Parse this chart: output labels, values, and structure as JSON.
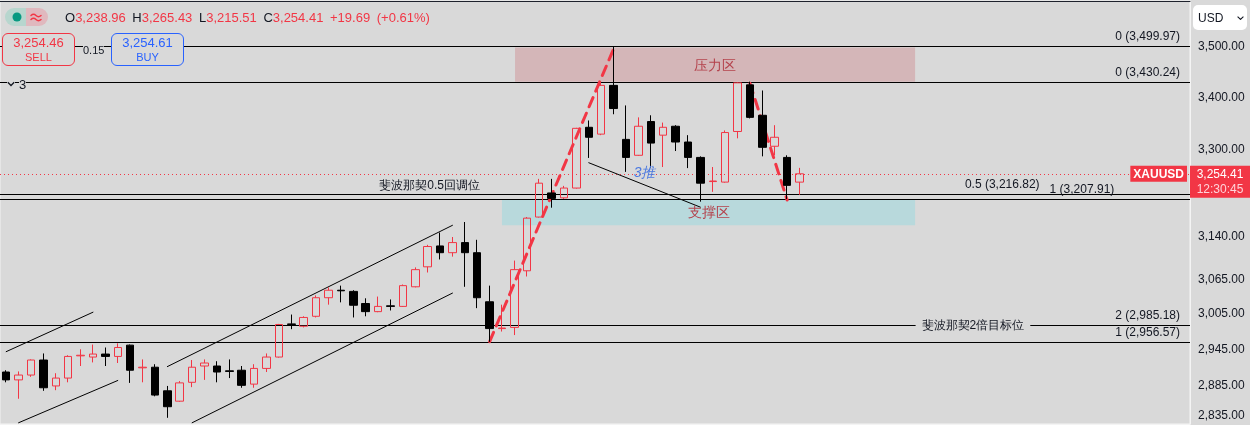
{
  "chart_data": {
    "type": "candlestick",
    "title": "O3,238.96 H3,265.43 L3,215.51 C3,254.41 +19.69 (+0.61%)",
    "categories": [
      null,
      null,
      null,
      null,
      null,
      null,
      null,
      null,
      null,
      null,
      null,
      null,
      null,
      null,
      null,
      null,
      null,
      null,
      null,
      null,
      null,
      null,
      null,
      null,
      null,
      null,
      null,
      null,
      null,
      null,
      null,
      null,
      null,
      null,
      null,
      null,
      null,
      null,
      null,
      null,
      null,
      null,
      null,
      null,
      null,
      null,
      null,
      null,
      null,
      null,
      null,
      null,
      null,
      null,
      null,
      null,
      null,
      null,
      null,
      null,
      null,
      null,
      null,
      null,
      null,
      null,
      null,
      null,
      null,
      null,
      null,
      null,
      null,
      null,
      null,
      null,
      null,
      null,
      null,
      null,
      null,
      null,
      null,
      null,
      null,
      null,
      null,
      null,
      null,
      null,
      null,
      null,
      null,
      null,
      null,
      null
    ],
    "ohlc": [
      [
        2906,
        2909,
        2889,
        2893
      ],
      [
        2893,
        2907,
        2862,
        2901
      ],
      [
        2901,
        2927,
        2898,
        2926
      ],
      [
        2926,
        2937,
        2875,
        2880
      ],
      [
        2883,
        2904,
        2876,
        2896
      ],
      [
        2896,
        2934,
        2889,
        2932
      ],
      [
        2933,
        2944,
        2916,
        2934
      ],
      [
        2931,
        2952,
        2922,
        2936
      ],
      [
        2936,
        2947,
        2916,
        2932
      ],
      [
        2932,
        2954,
        2921,
        2947
      ],
      [
        2951,
        2952,
        2888,
        2909
      ],
      [
        2913,
        2927,
        2889,
        2914
      ],
      [
        2914,
        2919,
        2866,
        2868
      ],
      [
        2875,
        2883,
        2831,
        2849
      ],
      [
        2858,
        2891,
        2857,
        2888
      ],
      [
        2889,
        2926,
        2881,
        2914
      ],
      [
        2916,
        2927,
        2893,
        2921
      ],
      [
        2916,
        2924,
        2889,
        2906
      ],
      [
        2908,
        2927,
        2896,
        2907
      ],
      [
        2909,
        2916,
        2880,
        2884
      ],
      [
        2886,
        2919,
        2880,
        2912
      ],
      [
        2912,
        2937,
        2906,
        2931
      ],
      [
        2931,
        2987,
        2930,
        2986
      ],
      [
        2987,
        3003,
        2978,
        2986
      ],
      [
        2983,
        3000,
        2981,
        2998
      ],
      [
        3000,
        3036,
        2998,
        3032
      ],
      [
        3032,
        3050,
        3020,
        3045
      ],
      [
        3045,
        3053,
        3024,
        3044
      ],
      [
        3043,
        3045,
        2998,
        3019
      ],
      [
        3022,
        3031,
        3000,
        3008
      ],
      [
        3008,
        3034,
        3007,
        3017
      ],
      [
        3018,
        3029,
        3010,
        3017
      ],
      [
        3017,
        3055,
        3016,
        3053
      ],
      [
        3051,
        3085,
        3050,
        3081
      ],
      [
        3086,
        3125,
        3076,
        3122
      ],
      [
        3123,
        3147,
        3099,
        3111
      ],
      [
        3111,
        3139,
        3104,
        3129
      ],
      [
        3129,
        3166,
        3051,
        3111
      ],
      [
        3111,
        3134,
        3014,
        3032
      ],
      [
        3025,
        3053,
        2956.57,
        2979
      ],
      [
        2979,
        3020,
        2974,
        2980
      ],
      [
        2981,
        3097,
        2968,
        3081
      ],
      [
        3079,
        3175,
        3069,
        3173
      ],
      [
        3175,
        3245,
        3174,
        3237
      ],
      [
        3219,
        3245,
        3192,
        3209
      ],
      [
        3210,
        3232,
        3208,
        3228
      ],
      [
        3228,
        3341,
        3227,
        3340
      ],
      [
        3342,
        3355,
        3284,
        3323
      ],
      [
        3329,
        3429,
        3327,
        3423
      ],
      [
        3423,
        3499.97,
        3367,
        3378
      ],
      [
        3319,
        3384,
        3258,
        3285
      ],
      [
        3289,
        3361,
        3288,
        3344
      ],
      [
        3353,
        3365,
        3265,
        3312
      ],
      [
        3327,
        3351,
        3267,
        3342
      ],
      [
        3344,
        3346,
        3297,
        3314
      ],
      [
        3314,
        3327,
        3265,
        3285
      ],
      [
        3285,
        3287,
        3203,
        3237
      ],
      [
        3240,
        3267,
        3221,
        3241
      ],
      [
        3239,
        3336,
        3238,
        3332
      ],
      [
        3334,
        3429,
        3321,
        3428
      ],
      [
        3424,
        3430.24,
        3359,
        3361
      ],
      [
        3365,
        3413,
        3287,
        3304
      ],
      [
        3306,
        3346,
        3289,
        3323
      ],
      [
        3285,
        3289,
        3207.91,
        3233
      ],
      [
        3238.96,
        3265.43,
        3215.51,
        3254.41
      ],
      null,
      null,
      null,
      null,
      null,
      null,
      null,
      null,
      null,
      null,
      null,
      null,
      null,
      null,
      null,
      null,
      null,
      null,
      null,
      null,
      null,
      null,
      null,
      null,
      null,
      null,
      null,
      null,
      null,
      null,
      null
    ],
    "colors": [
      "#000000",
      "#f23645",
      "#f23645",
      "#000000",
      "#f23645",
      "#f23645",
      "#f23645",
      "#f23645",
      "#000000",
      "#f23645",
      "#000000",
      "#f23645",
      "#000000",
      "#000000",
      "#f23645",
      "#f23645",
      "#f23645",
      "#000000",
      "#000000",
      "#000000",
      "#f23645",
      "#f23645",
      "#f23645",
      "#000000",
      "#f23645",
      "#f23645",
      "#f23645",
      "#000000",
      "#000000",
      "#000000",
      "#f23645",
      "#000000",
      "#f23645",
      "#f23645",
      "#f23645",
      "#000000",
      "#f23645",
      "#000000",
      "#000000",
      "#000000",
      "#f23645",
      "#f23645",
      "#f23645",
      "#f23645",
      "#000000",
      "#f23645",
      "#f23645",
      "#000000",
      "#f23645",
      "#000000",
      "#000000",
      "#f23645",
      "#000000",
      "#f23645",
      "#000000",
      "#000000",
      "#000000",
      "#f23645",
      "#f23645",
      "#f23645",
      "#000000",
      "#000000",
      "#f23645",
      "#000000",
      "#f23645",
      null,
      null,
      null,
      null,
      null,
      null,
      null,
      null,
      null,
      null,
      null,
      null,
      null,
      null,
      null,
      null,
      null,
      null,
      null,
      null,
      null,
      null,
      null,
      null,
      null,
      null,
      null,
      null,
      null,
      null,
      null
    ],
    "series": [
      {
        "type": "line",
        "color": "#000000",
        "values": [
          2940,
          null,
          null,
          null,
          null,
          null,
          null,
          3007,
          null,
          null,
          null,
          null,
          null,
          null,
          null,
          null,
          null,
          null,
          null,
          null,
          null,
          null,
          null,
          null,
          null,
          null,
          null,
          null,
          null,
          null,
          null,
          null,
          null,
          null,
          null,
          null,
          null,
          null,
          null,
          null,
          null,
          null,
          null,
          null,
          null,
          null,
          null,
          null,
          null,
          null,
          null,
          null,
          null,
          null,
          null,
          null,
          null,
          null,
          null,
          null,
          null,
          null,
          null,
          null,
          null,
          null,
          null,
          null,
          null,
          null,
          null,
          null,
          null,
          null,
          null,
          null,
          null,
          null,
          null,
          null,
          null,
          null,
          null,
          null,
          null,
          null,
          null,
          null,
          null,
          null,
          null,
          null,
          null,
          null,
          null,
          null
        ]
      },
      {
        "type": "line",
        "color": "#000000",
        "values": [
          null,
          2823,
          null,
          null,
          null,
          null,
          null,
          null,
          null,
          2892,
          null,
          null,
          null,
          null,
          null,
          null,
          null,
          null,
          null,
          null,
          null,
          null,
          null,
          null,
          null,
          null,
          null,
          null,
          null,
          null,
          null,
          null,
          null,
          null,
          null,
          null,
          null,
          null,
          null,
          null,
          null,
          null,
          null,
          null,
          null,
          null,
          null,
          null,
          null,
          null,
          null,
          null,
          null,
          null,
          null,
          null,
          null,
          null,
          null,
          null,
          null,
          null,
          null,
          null,
          null,
          null,
          null,
          null,
          null,
          null,
          null,
          null,
          null,
          null,
          null,
          null,
          null,
          null,
          null,
          null,
          null,
          null,
          null,
          null,
          null,
          null,
          null,
          null,
          null,
          null,
          null,
          null,
          null,
          null,
          null,
          null
        ]
      },
      {
        "type": "line",
        "color": "#000000",
        "values": [
          null,
          null,
          null,
          null,
          null,
          null,
          null,
          null,
          null,
          null,
          null,
          null,
          null,
          2915,
          null,
          null,
          null,
          null,
          null,
          null,
          null,
          null,
          null,
          null,
          null,
          null,
          null,
          null,
          null,
          null,
          null,
          null,
          null,
          null,
          null,
          null,
          3160,
          null,
          null,
          null,
          null,
          null,
          null,
          null,
          null,
          null,
          null,
          null,
          null,
          null,
          null,
          null,
          null,
          null,
          null,
          null,
          null,
          null,
          null,
          null,
          null,
          null,
          null,
          null,
          null,
          null,
          null,
          null,
          null,
          null,
          null,
          null,
          null,
          null,
          null,
          null,
          null,
          null,
          null,
          null,
          null,
          null,
          null,
          null,
          null,
          null,
          null,
          null,
          null,
          null,
          null,
          null,
          null,
          null,
          null,
          null
        ]
      },
      {
        "type": "line",
        "color": "#000000",
        "values": [
          null,
          null,
          null,
          null,
          null,
          null,
          null,
          null,
          null,
          null,
          null,
          null,
          null,
          null,
          null,
          2823,
          null,
          null,
          null,
          null,
          null,
          null,
          null,
          null,
          null,
          null,
          null,
          null,
          null,
          null,
          null,
          null,
          null,
          null,
          null,
          null,
          3040,
          null,
          null,
          null,
          null,
          null,
          null,
          null,
          null,
          null,
          null,
          null,
          null,
          null,
          null,
          null,
          null,
          null,
          null,
          null,
          null,
          null,
          null,
          null,
          null,
          null,
          null,
          null,
          null,
          null,
          null,
          null,
          null,
          null,
          null,
          null,
          null,
          null,
          null,
          null,
          null,
          null,
          null,
          null,
          null,
          null,
          null,
          null,
          null,
          null,
          null,
          null,
          null,
          null,
          null,
          null,
          null,
          null,
          null,
          null
        ]
      },
      {
        "type": "line",
        "name": "3推",
        "color": "#000000",
        "values": [
          null,
          null,
          null,
          null,
          null,
          null,
          null,
          null,
          null,
          null,
          null,
          null,
          null,
          null,
          null,
          null,
          null,
          null,
          null,
          null,
          null,
          null,
          null,
          null,
          null,
          null,
          null,
          null,
          null,
          null,
          null,
          null,
          null,
          null,
          null,
          null,
          null,
          null,
          null,
          null,
          null,
          null,
          null,
          null,
          null,
          null,
          null,
          3275,
          null,
          null,
          null,
          null,
          null,
          null,
          null,
          null,
          3193,
          null,
          null,
          null,
          null,
          null,
          null,
          null,
          null,
          null,
          null,
          null,
          null,
          null,
          null,
          null,
          null,
          null,
          null,
          null,
          null,
          null,
          null,
          null,
          null,
          null,
          null,
          null,
          null,
          null,
          null,
          null,
          null,
          null,
          null,
          null,
          null,
          null,
          null,
          null
        ]
      },
      {
        "type": "line",
        "color": "#f23645",
        "line_style": "dashed",
        "values": [
          null,
          null,
          null,
          null,
          null,
          null,
          null,
          null,
          null,
          null,
          null,
          null,
          null,
          null,
          null,
          null,
          null,
          null,
          null,
          null,
          null,
          null,
          null,
          null,
          null,
          null,
          null,
          null,
          null,
          null,
          null,
          null,
          null,
          null,
          null,
          null,
          null,
          null,
          null,
          2957,
          null,
          null,
          null,
          null,
          null,
          null,
          null,
          null,
          null,
          3495,
          null,
          null,
          null,
          null,
          null,
          null,
          null,
          null,
          null,
          null,
          null,
          null,
          null,
          null,
          null,
          null,
          null,
          null,
          null,
          null,
          null,
          null,
          null,
          null,
          null,
          null,
          null,
          null,
          null,
          null,
          null,
          null,
          null,
          null,
          null,
          null,
          null,
          null,
          null,
          null,
          null,
          null,
          null,
          null,
          null,
          null
        ]
      },
      {
        "type": "line",
        "color": "#f23645",
        "line_style": "dashed",
        "values": [
          null,
          null,
          null,
          null,
          null,
          null,
          null,
          null,
          null,
          null,
          null,
          null,
          null,
          null,
          null,
          null,
          null,
          null,
          null,
          null,
          null,
          null,
          null,
          null,
          null,
          null,
          null,
          null,
          null,
          null,
          null,
          null,
          null,
          null,
          null,
          null,
          null,
          null,
          null,
          null,
          null,
          null,
          null,
          null,
          null,
          null,
          null,
          null,
          null,
          null,
          null,
          null,
          null,
          null,
          null,
          null,
          null,
          null,
          null,
          null,
          3427,
          null,
          null,
          3206,
          null,
          null,
          null,
          null,
          null,
          null,
          null,
          null,
          null,
          null,
          null,
          null,
          null,
          null,
          null,
          null,
          null,
          null,
          null,
          null,
          null,
          null,
          null,
          null,
          null,
          null,
          null,
          null,
          null,
          null,
          null,
          null
        ]
      }
    ],
    "log": true,
    "ylim": [
      2821,
      3592
    ],
    "yticks": [
      {
        "value": 2835,
        "label": "2,835.00"
      },
      {
        "value": 2885,
        "label": "2,885.00"
      },
      {
        "value": 2945,
        "label": "2,945.00"
      },
      {
        "value": 3005,
        "label": "3,005.00"
      },
      {
        "value": 3065,
        "label": "3,065.00"
      },
      {
        "value": 3140,
        "label": "3,140.00"
      },
      {
        "value": 3300,
        "label": "3,300.00"
      },
      {
        "value": 3400,
        "label": "3,400.00"
      },
      {
        "value": 3500,
        "label": "3,500.00"
      }
    ],
    "tick_labels": "y",
    "marker": "none",
    "ref_lines": [
      {
        "axis": "y",
        "value": 3254.41,
        "label": "XAUUSD",
        "color": "#f23645",
        "line_style": "dotted"
      },
      {
        "axis": "y",
        "value": 3499.97,
        "label": "0 (3,499.97)",
        "color": "#000000"
      },
      {
        "axis": "y",
        "value": 3430.24,
        "label": "0 (3,430.24)",
        "color": "#000000"
      },
      {
        "axis": "y",
        "value": 3216.82,
        "label": "0.5 (3,216.82)",
        "color": "#000000"
      },
      {
        "axis": "y",
        "value": 3207.91,
        "label": "1 (3,207.91)",
        "color": "#000000"
      },
      {
        "axis": "y",
        "value": 2985.18,
        "label": "2 (2,985.18)",
        "color": "#000000"
      },
      {
        "axis": "y",
        "value": 2956.57,
        "label": "1 (2,956.57)",
        "color": "#000000"
      }
    ],
    "bands": [
      {
        "axis": "y",
        "from": 3430,
        "to": 3498,
        "label": "压力区",
        "color": "#d4b6b8"
      },
      {
        "axis": "y",
        "from": 3160,
        "to": 3208,
        "label": "支撑区",
        "color": "#b8d9dc"
      }
    ],
    "annotations": [
      "3,254.46",
      "SELL",
      "0.15",
      "3,254.61",
      "BUY",
      "3",
      "USD",
      "斐波那契0.5回调位",
      "斐波那契2倍目标位",
      "3,254.41",
      "12:30:45"
    ]
  }
}
